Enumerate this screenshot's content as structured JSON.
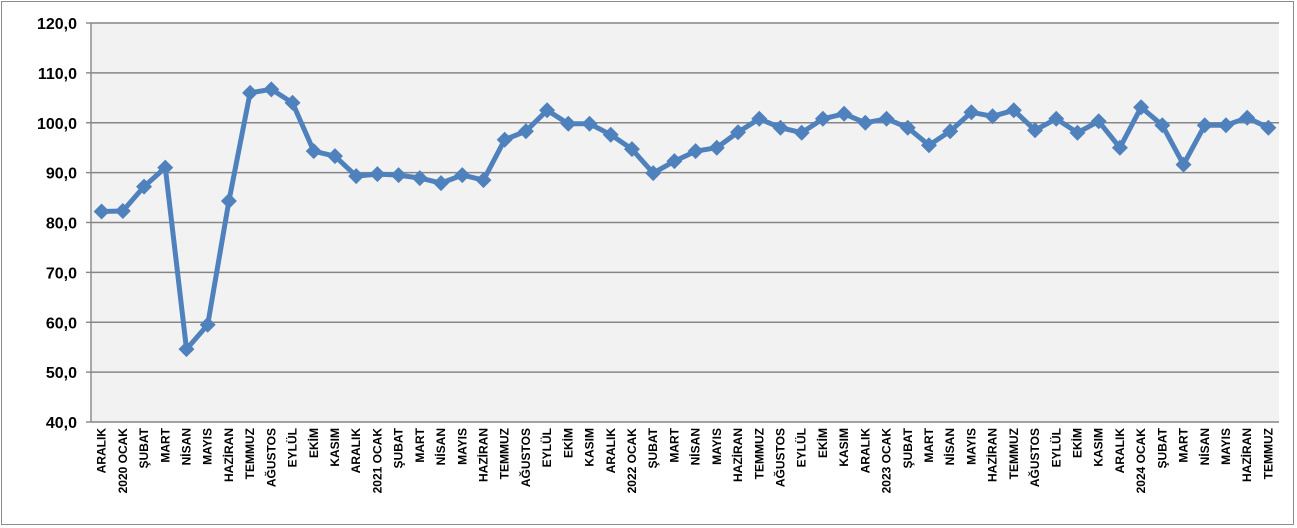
{
  "chart_data": {
    "type": "line",
    "title": "",
    "xlabel": "",
    "ylabel": "",
    "ylim": [
      40,
      120
    ],
    "yticks": [
      "40,0",
      "50,0",
      "60,0",
      "70,0",
      "80,0",
      "90,0",
      "100,0",
      "110,0",
      "120,0"
    ],
    "grid": true,
    "legend": "none",
    "line_color": "#4f81bd",
    "plot_background": "#f2f2f2",
    "categories": [
      "ARALIK",
      "2020 OCAK",
      "ŞUBAT",
      "MART",
      "NİSAN",
      "MAYIS",
      "HAZİRAN",
      "TEMMUZ",
      "AĞUSTOS",
      "EYLÜL",
      "EKİM",
      "KASIM",
      "ARALIK",
      "2021 OCAK",
      "ŞUBAT",
      "MART",
      "NİSAN",
      "MAYIS",
      "HAZİRAN",
      "TEMMUZ",
      "AĞUSTOS",
      "EYLÜL",
      "EKİM",
      "KASIM",
      "ARALIK",
      "2022 OCAK",
      "ŞUBAT",
      "MART",
      "NİSAN",
      "MAYIS",
      "HAZİRAN",
      "TEMMUZ",
      "AĞUSTOS",
      "EYLÜL",
      "EKİM",
      "KASIM",
      "ARALIK",
      "2023 OCAK",
      "ŞUBAT",
      "MART",
      "NİSAN",
      "MAYIS",
      "HAZİRAN",
      "TEMMUZ",
      "AĞUSTOS",
      "EYLÜL",
      "EKİM",
      "KASIM",
      "ARALIK",
      "2024 OCAK",
      "ŞUBAT",
      "MART",
      "NİSAN",
      "MAYIS",
      "HAZİRAN",
      "TEMMUZ"
    ],
    "series": [
      {
        "values": [
          82.2,
          82.3,
          87.2,
          91.0,
          54.6,
          59.5,
          84.3,
          106.0,
          106.7,
          104.0,
          94.3,
          93.3,
          89.3,
          89.7,
          89.5,
          88.9,
          87.9,
          89.5,
          88.5,
          96.6,
          98.3,
          102.5,
          99.8,
          99.8,
          97.6,
          94.7,
          89.9,
          92.3,
          94.3,
          95.0,
          98.1,
          100.8,
          99.0,
          98.0,
          100.8,
          101.8,
          100.0,
          100.8,
          99.0,
          95.5,
          98.3,
          102.1,
          101.3,
          102.5,
          98.5,
          100.8,
          98.0,
          100.3,
          95.0,
          103.1,
          99.5,
          91.6,
          99.5,
          99.5,
          101.0,
          99.0
        ]
      }
    ]
  }
}
